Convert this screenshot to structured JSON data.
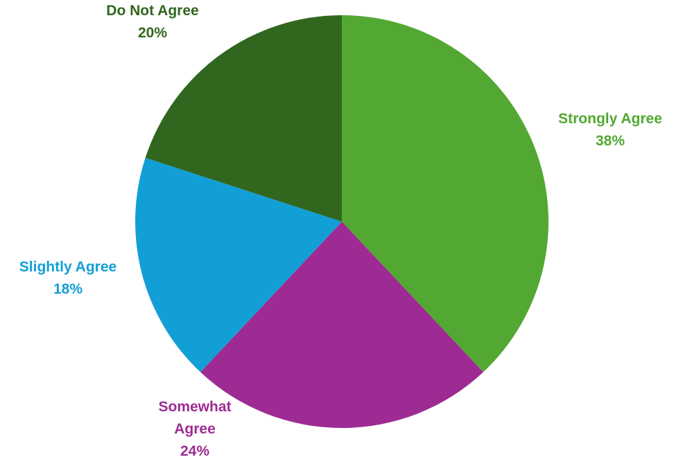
{
  "chart_data": {
    "type": "pie",
    "title": "",
    "slices": [
      {
        "label": "Strongly Agree",
        "value": 38,
        "value_label": "38%",
        "color": "#52a832"
      },
      {
        "label": "Somewhat Agree",
        "value": 24,
        "value_label": "24%",
        "color": "#9e2b93"
      },
      {
        "label": "Slightly Agree",
        "value": 18,
        "value_label": "18%",
        "color": "#129fd6"
      },
      {
        "label": "Do Not Agree",
        "value": 20,
        "value_label": "20%",
        "color": "#31661e"
      }
    ],
    "start": "12 o'clock",
    "direction": "clockwise",
    "legend": "none",
    "data_labels": "outside"
  }
}
